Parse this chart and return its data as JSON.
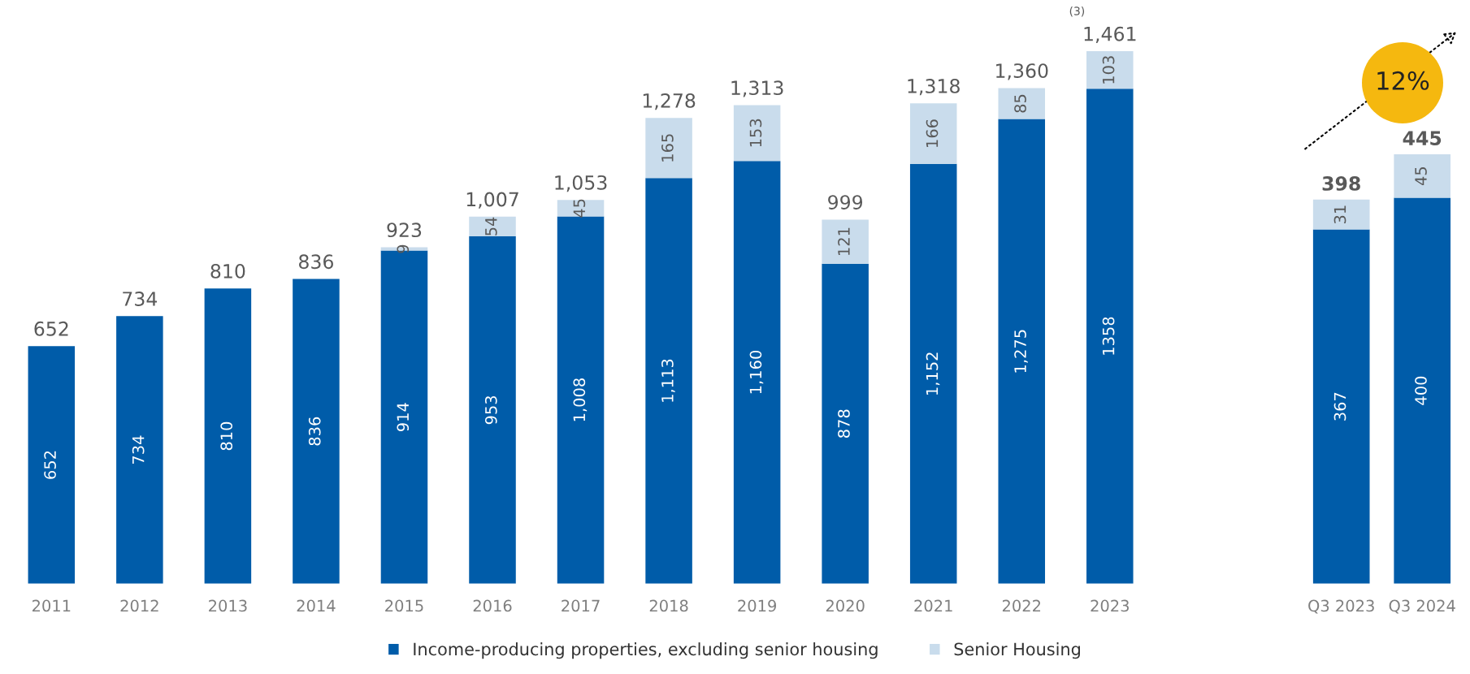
{
  "chart_data": [
    {
      "type": "bar",
      "stacked": true,
      "legend": "bottom",
      "categories": [
        "2011",
        "2012",
        "2013",
        "2014",
        "2015",
        "2016",
        "2017",
        "2018",
        "2019",
        "2020",
        "2021",
        "2022",
        "2023"
      ],
      "series": [
        {
          "name": "Income-producing properties, excluding senior housing",
          "color": "#005ca9",
          "values": [
            652,
            734,
            810,
            836,
            914,
            953,
            1008,
            1113,
            1160,
            878,
            1152,
            1275,
            1358
          ],
          "value_labels": [
            "652",
            "734",
            "810",
            "836",
            "914",
            "953",
            "1,008",
            "1,113",
            "1,160",
            "878",
            "1,152",
            "1,275",
            "1358"
          ]
        },
        {
          "name": "Senior Housing",
          "color": "#c9dcec",
          "values": [
            null,
            null,
            null,
            null,
            9,
            54,
            45,
            165,
            153,
            121,
            166,
            85,
            103
          ],
          "value_labels": [
            null,
            null,
            null,
            null,
            "9",
            "54",
            "45",
            "165",
            "153",
            "121",
            "166",
            "85",
            "103"
          ]
        }
      ],
      "totals": [
        "652",
        "734",
        "810",
        "836",
        "923",
        "1,007",
        "1,053",
        "1,278",
        "1,313",
        "999",
        "1,318",
        "1,360",
        "1,461"
      ],
      "annotations": [
        "(3)"
      ]
    },
    {
      "type": "bar",
      "stacked": true,
      "categories": [
        "Q3 2023",
        "Q3 2024"
      ],
      "series": [
        {
          "color": "#005ca9",
          "values": [
            367,
            400
          ],
          "value_labels": [
            "367",
            "400"
          ]
        },
        {
          "color": "#c9dcec",
          "values": [
            31,
            45
          ],
          "value_labels": [
            "31",
            "45"
          ]
        }
      ],
      "totals": [
        "398",
        "445"
      ],
      "annotations": [
        "12%"
      ]
    }
  ]
}
